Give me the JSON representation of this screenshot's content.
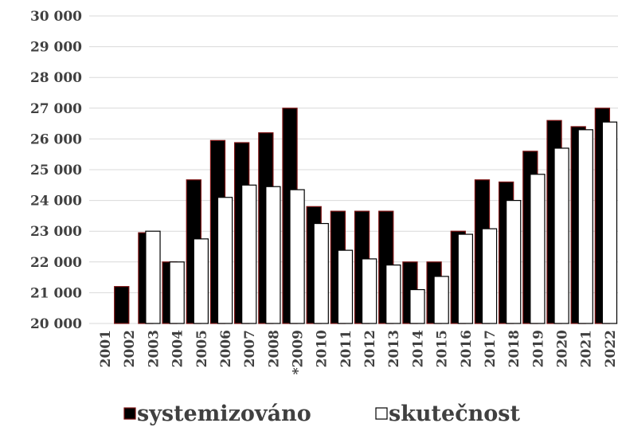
{
  "chart_data": {
    "type": "bar",
    "categories": [
      "2001",
      "2002",
      "2003",
      "2004",
      "2005",
      "2006",
      "2007",
      "2008",
      "*2009",
      "2010",
      "2011",
      "2012",
      "2013",
      "2014",
      "2015",
      "2016",
      "2017",
      "2018",
      "2019",
      "2020",
      "2021",
      "2022"
    ],
    "series": [
      {
        "name": "systemizováno",
        "color": "#000000",
        "values": [
          null,
          21200,
          22950,
          22000,
          24670,
          25950,
          25880,
          26200,
          27000,
          23800,
          23650,
          23650,
          23650,
          22000,
          22000,
          23000,
          24670,
          24600,
          25600,
          26600,
          26400,
          27000
        ]
      },
      {
        "name": "skutečnost",
        "color": "#ffffff",
        "values": [
          null,
          null,
          23000,
          22000,
          22750,
          24100,
          24500,
          24450,
          24350,
          23250,
          22380,
          22100,
          21900,
          21100,
          21530,
          22900,
          23080,
          24000,
          24850,
          25700,
          26300,
          26550
        ]
      }
    ],
    "ylim": [
      20000,
      30000
    ],
    "yticks": [
      {
        "value": 20000,
        "label": "20 000"
      },
      {
        "value": 21000,
        "label": "21 000"
      },
      {
        "value": 22000,
        "label": "22 000"
      },
      {
        "value": 23000,
        "label": "23 000"
      },
      {
        "value": 24000,
        "label": "24 000"
      },
      {
        "value": 25000,
        "label": "25 000"
      },
      {
        "value": 26000,
        "label": "26 000"
      },
      {
        "value": 27000,
        "label": "27 000"
      },
      {
        "value": 28000,
        "label": "28 000"
      },
      {
        "value": 29000,
        "label": "29 000"
      },
      {
        "value": 30000,
        "label": "30 000"
      }
    ],
    "grid": true,
    "legend": "bottom"
  }
}
